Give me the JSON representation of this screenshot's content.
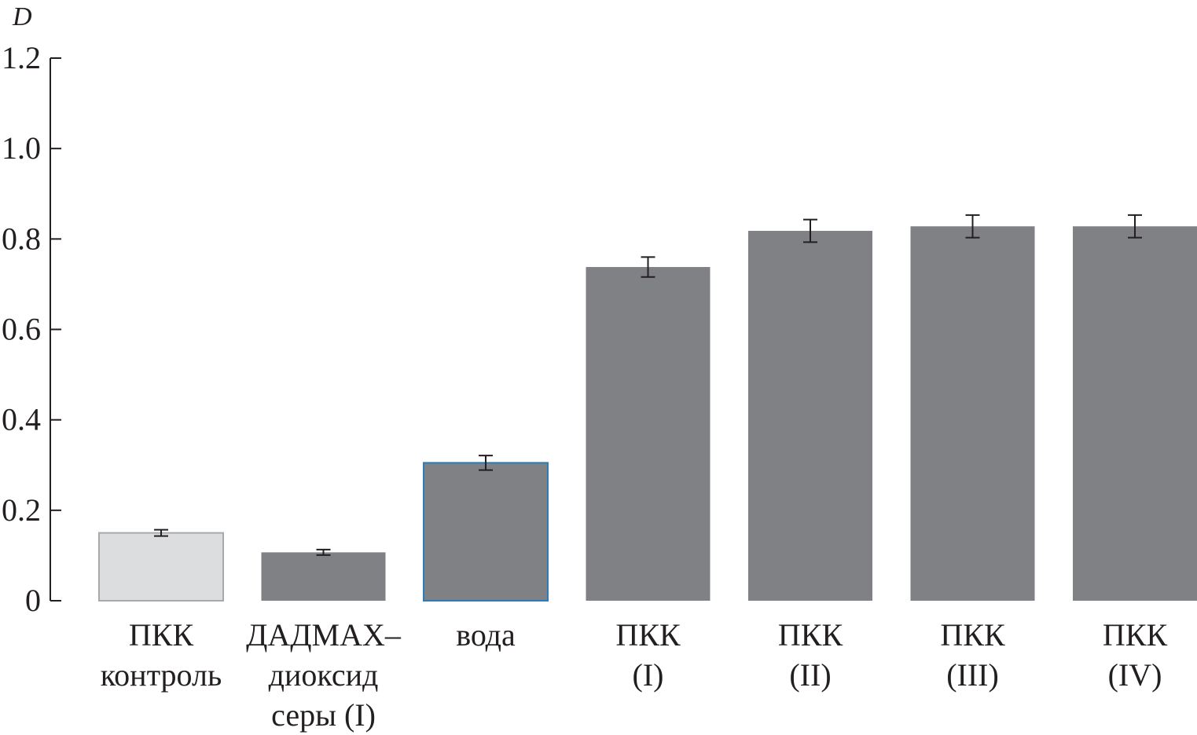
{
  "chart_data": {
    "type": "bar",
    "ylabel": "D",
    "ylim": [
      0,
      1.2
    ],
    "yticks": [
      "0",
      "0.2",
      "0.4",
      "0.6",
      "0.8",
      "1.0",
      "1.2"
    ],
    "categories": [
      [
        "ПКК",
        "контроль"
      ],
      [
        "ДАДМАХ–",
        "диоксид",
        "серы (I)"
      ],
      [
        "вода"
      ],
      [
        "ПКК",
        "(I)"
      ],
      [
        "ПКК",
        "(II)"
      ],
      [
        "ПКК",
        "(III)"
      ],
      [
        "ПКК",
        "(IV)"
      ]
    ],
    "values": [
      0.15,
      0.107,
      0.305,
      0.738,
      0.818,
      0.828,
      0.828
    ],
    "errors": [
      0.007,
      0.006,
      0.016,
      0.022,
      0.025,
      0.025,
      0.025
    ],
    "bar_colors": [
      "#dcdddf",
      "#808184",
      "#808184",
      "#808184",
      "#808184",
      "#808184",
      "#808184"
    ],
    "bar_outlines": [
      "#a7a9ac",
      "none",
      "#2a7db8",
      "none",
      "none",
      "none",
      "none"
    ],
    "error_color": "#231f20",
    "axis_color": "#231f20",
    "grid": false
  }
}
